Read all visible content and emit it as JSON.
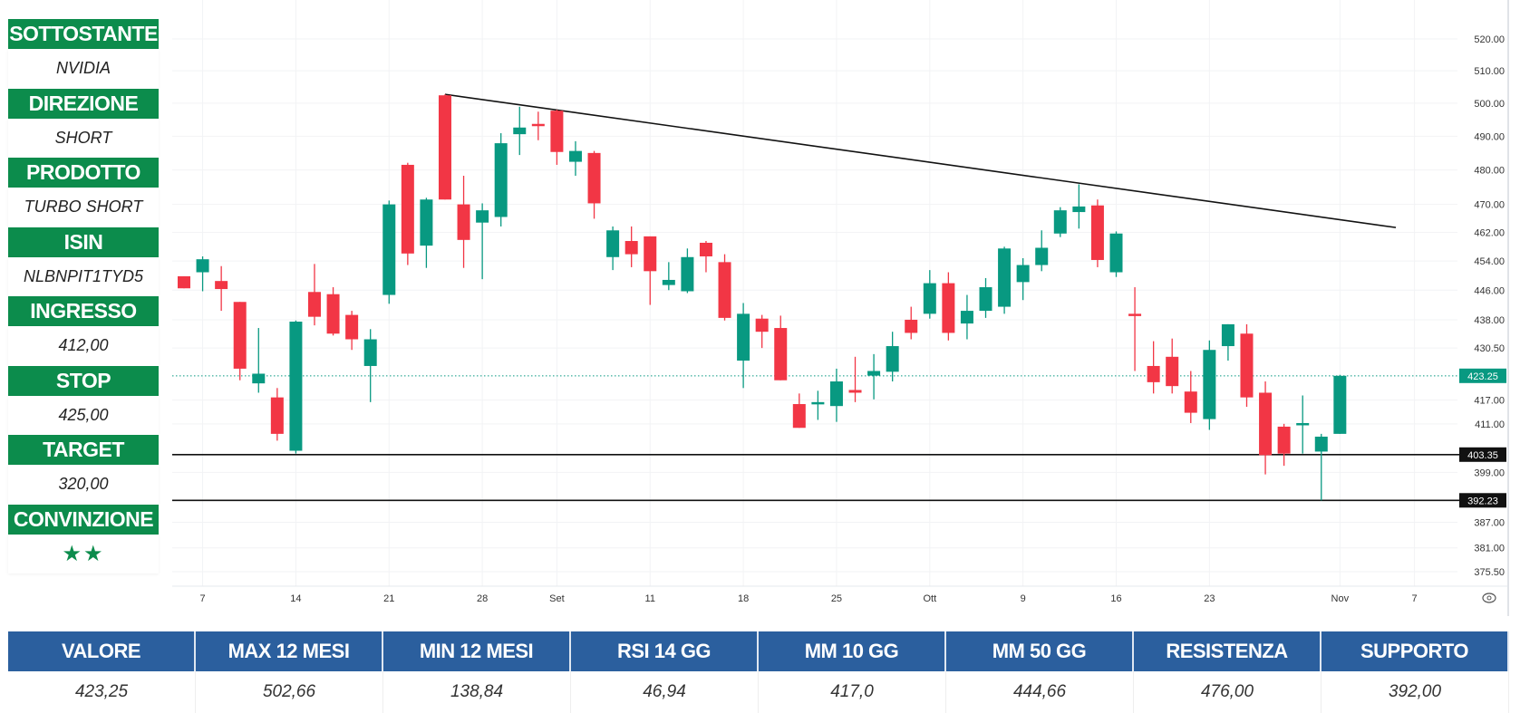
{
  "panel": [
    {
      "label": "SOTTOSTANTE",
      "value": "NVIDIA"
    },
    {
      "label": "DIREZIONE",
      "value": "SHORT"
    },
    {
      "label": "PRODOTTO",
      "value": "TURBO SHORT"
    },
    {
      "label": "ISIN",
      "value": "NLBNPIT1TYD5"
    },
    {
      "label": "INGRESSO",
      "value": "412,00"
    },
    {
      "label": "STOP",
      "value": "425,00"
    },
    {
      "label": "TARGET",
      "value": "320,00"
    },
    {
      "label": "CONVINZIONE",
      "value": "★★"
    }
  ],
  "table": {
    "headers": [
      "VALORE",
      "MAX 12 MESI",
      "MIN 12 MESI",
      "RSI 14 GG",
      "MM 10 GG",
      "MM 50 GG",
      "RESISTENZA",
      "SUPPORTO"
    ],
    "values": [
      "423,25",
      "502,66",
      "138,84",
      "46,94",
      "417,0",
      "444,66",
      "476,00",
      "392,00"
    ]
  },
  "colors": {
    "up": "#089981",
    "down": "#f23645",
    "panel_header": "#0c8c4c",
    "table_header": "#2b5f9e"
  },
  "chart_data": {
    "type": "candlestick",
    "scale": "log",
    "ylim": [
      373,
      525
    ],
    "y_ticks": [
      "520.00",
      "510.00",
      "500.00",
      "490.00",
      "480.00",
      "470.00",
      "462.00",
      "454.00",
      "446.00",
      "438.00",
      "430.50",
      "417.00",
      "411.00",
      "399.00",
      "387.00",
      "381.00",
      "375.50"
    ],
    "x_ticks": [
      {
        "bar": 1,
        "label": "7"
      },
      {
        "bar": 6,
        "label": "14"
      },
      {
        "bar": 11,
        "label": "21"
      },
      {
        "bar": 16,
        "label": "28"
      },
      {
        "bar": 20,
        "label": "Set"
      },
      {
        "bar": 25,
        "label": "11"
      },
      {
        "bar": 30,
        "label": "18"
      },
      {
        "bar": 35,
        "label": "25"
      },
      {
        "bar": 40,
        "label": "Ott"
      },
      {
        "bar": 45,
        "label": "9"
      },
      {
        "bar": 50,
        "label": "16"
      },
      {
        "bar": 55,
        "label": "23"
      },
      {
        "bar": 62,
        "label": "Nov"
      },
      {
        "bar": 66,
        "label": "7"
      }
    ],
    "ohlc": [
      [
        449.8,
        449.8,
        446.5,
        446.5
      ],
      [
        450.9,
        455.3,
        445.7,
        454.5
      ],
      [
        448.5,
        452.6,
        440.4,
        446.3
      ],
      [
        442.8,
        442.8,
        422.1,
        425.1
      ],
      [
        421.3,
        435.8,
        418.9,
        423.8
      ],
      [
        417.7,
        420.1,
        406.8,
        408.5
      ],
      [
        404.3,
        437.8,
        403.6,
        437.5
      ],
      [
        445.5,
        453.2,
        436.5,
        438.8
      ],
      [
        444.9,
        446.8,
        433.8,
        434.3
      ],
      [
        439.3,
        440.4,
        430.0,
        432.8
      ],
      [
        425.8,
        435.5,
        416.5,
        432.8
      ],
      [
        444.7,
        471.1,
        442.3,
        470.0
      ],
      [
        481.5,
        482.1,
        452.9,
        456.1
      ],
      [
        458.3,
        471.9,
        452.1,
        471.4
      ],
      [
        502.4,
        502.7,
        471.4,
        471.4
      ],
      [
        470.0,
        478.3,
        452.1,
        459.9
      ],
      [
        464.8,
        470.3,
        449.0,
        468.3
      ],
      [
        466.4,
        490.9,
        463.7,
        487.9
      ],
      [
        490.6,
        498.9,
        484.4,
        492.6
      ],
      [
        493.7,
        497.4,
        488.8,
        493.4
      ],
      [
        497.7,
        498.0,
        481.5,
        485.3
      ],
      [
        482.4,
        488.5,
        478.3,
        485.6
      ],
      [
        485.0,
        485.6,
        465.9,
        470.3
      ],
      [
        455.1,
        463.7,
        451.5,
        462.6
      ],
      [
        459.6,
        463.7,
        452.3,
        455.9
      ],
      [
        460.9,
        460.9,
        442.0,
        451.2
      ],
      [
        447.4,
        453.7,
        446.0,
        448.8
      ],
      [
        445.7,
        457.5,
        445.2,
        455.1
      ],
      [
        459.1,
        459.6,
        450.9,
        455.3
      ],
      [
        453.7,
        455.9,
        437.8,
        438.5
      ],
      [
        427.2,
        442.5,
        420.1,
        439.6
      ],
      [
        438.3,
        439.3,
        430.5,
        434.8
      ],
      [
        435.8,
        439.1,
        422.1,
        422.1
      ],
      [
        416.0,
        418.7,
        410.0,
        410.0
      ],
      [
        416.3,
        419.4,
        412.0,
        416.5
      ],
      [
        415.5,
        425.1,
        411.5,
        421.8
      ],
      [
        419.6,
        428.2,
        416.5,
        418.9
      ],
      [
        423.3,
        428.9,
        417.2,
        424.5
      ],
      [
        424.3,
        434.8,
        421.8,
        431.0
      ],
      [
        438.0,
        441.5,
        432.8,
        434.5
      ],
      [
        439.6,
        451.5,
        438.3,
        447.9
      ],
      [
        447.9,
        450.9,
        432.5,
        434.5
      ],
      [
        437.0,
        444.7,
        432.8,
        440.4
      ],
      [
        440.4,
        449.3,
        438.5,
        446.8
      ],
      [
        441.5,
        458.0,
        439.6,
        457.5
      ],
      [
        448.2,
        454.8,
        443.3,
        452.9
      ],
      [
        452.9,
        462.6,
        451.2,
        457.7
      ],
      [
        461.7,
        469.2,
        460.7,
        468.3
      ],
      [
        467.8,
        475.8,
        463.1,
        469.4
      ],
      [
        469.7,
        471.4,
        452.3,
        454.3
      ],
      [
        450.9,
        462.3,
        449.6,
        461.7
      ],
      [
        439.6,
        446.8,
        424.5,
        439.3
      ],
      [
        425.8,
        432.3,
        418.7,
        421.6
      ],
      [
        428.2,
        433.0,
        418.7,
        420.6
      ],
      [
        419.2,
        424.5,
        411.2,
        413.8
      ],
      [
        412.2,
        432.5,
        409.5,
        430.0
      ],
      [
        431.0,
        436.8,
        427.2,
        436.8
      ],
      [
        434.3,
        436.8,
        415.3,
        417.7
      ],
      [
        418.9,
        421.8,
        398.5,
        403.2
      ],
      [
        410.3,
        411.0,
        400.6,
        403.6
      ],
      [
        410.8,
        418.2,
        403.6,
        411.2
      ],
      [
        404.1,
        408.5,
        392.2,
        407.8
      ],
      [
        408.5,
        423.5,
        408.5,
        423.25
      ]
    ],
    "last_price": {
      "value": 423.25,
      "label": "423.25"
    },
    "levels": [
      {
        "value": 403.35,
        "label": "403.35"
      },
      {
        "value": 392.23,
        "label": "392.23"
      }
    ],
    "trendline": {
      "from": {
        "bar": 14,
        "price": 502.7
      },
      "to": {
        "bar": 65,
        "price": 463.4
      }
    }
  }
}
